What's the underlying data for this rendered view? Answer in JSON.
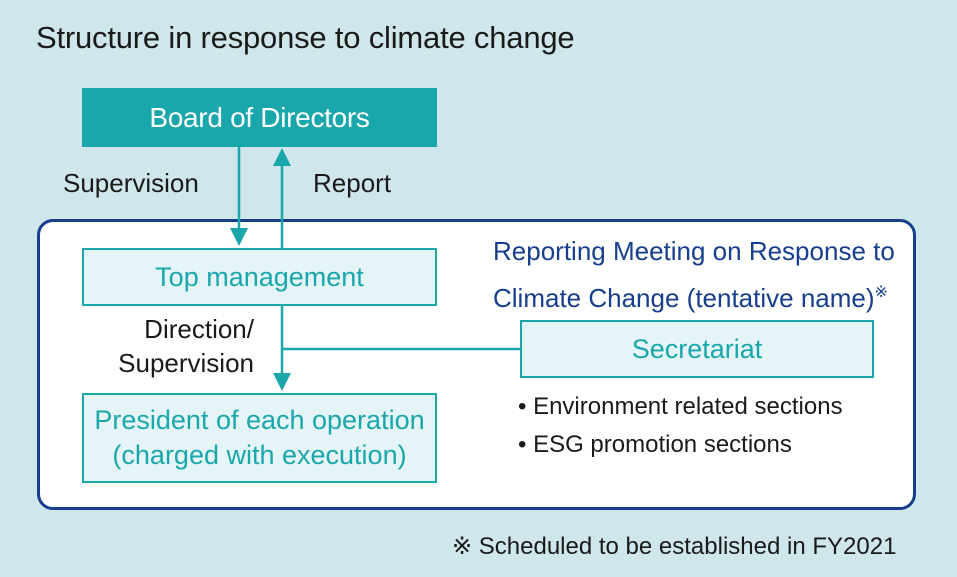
{
  "title": "Structure in response to climate change",
  "board": {
    "label": "Board of Directors"
  },
  "supervision_label": "Supervision",
  "report_label": "Report",
  "top_management": {
    "label": "Top management"
  },
  "direction_label": {
    "line1": "Direction/",
    "line2": "Supervision"
  },
  "president": {
    "line1": "President of each operation",
    "line2": "(charged with execution)"
  },
  "meeting": {
    "line1": "Reporting Meeting on Response to",
    "line2": "Climate Change (tentative name)",
    "mark": "※"
  },
  "secretariat": {
    "label": "Secretariat"
  },
  "sections": [
    "Environment related sections",
    "ESG promotion sections"
  ],
  "note": "※ Scheduled to be established in FY2021",
  "colors": {
    "teal": "#1aa7ab",
    "navy": "#163e8c",
    "background": "#cfe6ea",
    "box_fill": "#e5f4f6"
  }
}
